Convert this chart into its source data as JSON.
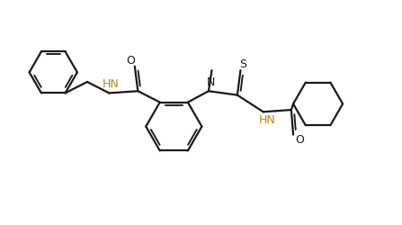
{
  "background": "#ffffff",
  "line_color": "#1a1a1a",
  "line_width": 1.6,
  "label_color_hn": "#b8860b",
  "label_color_black": "#1a1a1a",
  "figsize": [
    4.47,
    2.5
  ],
  "dpi": 100,
  "xlim": [
    0,
    10
  ],
  "ylim": [
    0,
    5.6
  ]
}
